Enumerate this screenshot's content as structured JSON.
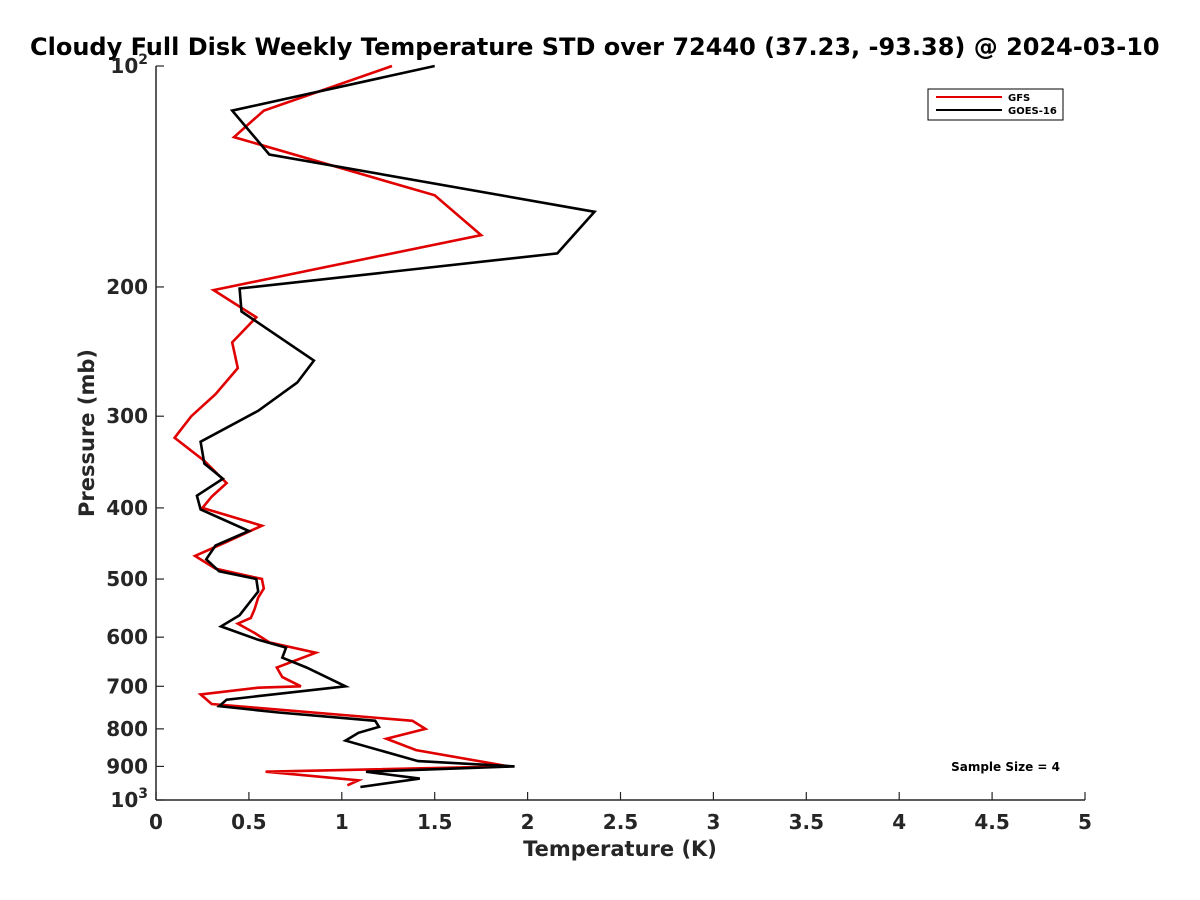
{
  "chart_data": {
    "type": "line",
    "title": "Cloudy Full Disk Weekly Temperature STD over 72440 (37.23, -93.38) @ 2024-03-10",
    "xlabel": "Temperature (K)",
    "ylabel": "Pressure (mb)",
    "xlim": [
      0,
      5
    ],
    "ylim": [
      100,
      1000
    ],
    "y_scale": "log",
    "y_reversed": true,
    "x_ticks": [
      0,
      0.5,
      1,
      1.5,
      2,
      2.5,
      3,
      3.5,
      4,
      4.5,
      5
    ],
    "x_tick_labels": [
      "0",
      "0.5",
      "1",
      "1.5",
      "2",
      "2.5",
      "3",
      "3.5",
      "4",
      "4.5",
      "5"
    ],
    "y_ticks": [
      100,
      200,
      300,
      400,
      500,
      600,
      700,
      800,
      900,
      1000
    ],
    "y_tick_labels": [
      {
        "base": "10",
        "exp": "2"
      },
      {
        "base": "200",
        "exp": ""
      },
      {
        "base": "300",
        "exp": ""
      },
      {
        "base": "400",
        "exp": ""
      },
      {
        "base": "500",
        "exp": ""
      },
      {
        "base": "600",
        "exp": ""
      },
      {
        "base": "700",
        "exp": ""
      },
      {
        "base": "800",
        "exp": ""
      },
      {
        "base": "900",
        "exp": ""
      },
      {
        "base": "10",
        "exp": "3"
      }
    ],
    "grid": false,
    "legend_position": "top-right",
    "annotation": "Sample Size = 4",
    "series": [
      {
        "name": "GFS",
        "color": "#e00000",
        "points": [
          [
            1.27,
            100
          ],
          [
            0.58,
            115
          ],
          [
            0.42,
            125
          ],
          [
            1.5,
            150
          ],
          [
            1.75,
            170
          ],
          [
            0.31,
            202
          ],
          [
            0.54,
            220
          ],
          [
            0.41,
            238
          ],
          [
            0.44,
            258
          ],
          [
            0.32,
            280
          ],
          [
            0.19,
            300
          ],
          [
            0.1,
            321
          ],
          [
            0.26,
            345
          ],
          [
            0.38,
            370
          ],
          [
            0.3,
            386
          ],
          [
            0.25,
            400
          ],
          [
            0.57,
            423
          ],
          [
            0.38,
            445
          ],
          [
            0.21,
            465
          ],
          [
            0.32,
            484
          ],
          [
            0.57,
            500
          ],
          [
            0.58,
            515
          ],
          [
            0.55,
            530
          ],
          [
            0.53,
            550
          ],
          [
            0.51,
            565
          ],
          [
            0.44,
            575
          ],
          [
            0.53,
            592
          ],
          [
            0.61,
            610
          ],
          [
            0.86,
            630
          ],
          [
            0.65,
            660
          ],
          [
            0.68,
            680
          ],
          [
            0.78,
            700
          ],
          [
            0.55,
            703
          ],
          [
            0.24,
            718
          ],
          [
            0.3,
            740
          ],
          [
            1.38,
            780
          ],
          [
            1.45,
            800
          ],
          [
            1.24,
            825
          ],
          [
            1.4,
            855
          ],
          [
            1.9,
            900
          ],
          [
            0.59,
            915
          ],
          [
            1.09,
            940
          ],
          [
            1.03,
            955
          ]
        ]
      },
      {
        "name": "GOES-16",
        "color": "#000000",
        "points": [
          [
            1.5,
            100
          ],
          [
            0.41,
            115
          ],
          [
            0.61,
            132
          ],
          [
            2.36,
            158
          ],
          [
            2.16,
            180
          ],
          [
            0.45,
            201
          ],
          [
            0.46,
            216
          ],
          [
            0.85,
            252
          ],
          [
            0.76,
            270
          ],
          [
            0.55,
            295
          ],
          [
            0.24,
            325
          ],
          [
            0.26,
            348
          ],
          [
            0.36,
            365
          ],
          [
            0.22,
            385
          ],
          [
            0.24,
            402
          ],
          [
            0.5,
            430
          ],
          [
            0.32,
            450
          ],
          [
            0.27,
            470
          ],
          [
            0.34,
            488
          ],
          [
            0.54,
            500
          ],
          [
            0.55,
            520
          ],
          [
            0.45,
            560
          ],
          [
            0.35,
            580
          ],
          [
            0.55,
            605
          ],
          [
            0.7,
            620
          ],
          [
            0.68,
            640
          ],
          [
            0.81,
            660
          ],
          [
            1.02,
            700
          ],
          [
            0.38,
            730
          ],
          [
            0.34,
            745
          ],
          [
            0.66,
            760
          ],
          [
            1.18,
            780
          ],
          [
            1.2,
            795
          ],
          [
            1.09,
            810
          ],
          [
            1.02,
            830
          ],
          [
            1.41,
            885
          ],
          [
            1.93,
            900
          ],
          [
            1.13,
            915
          ],
          [
            1.42,
            935
          ],
          [
            1.1,
            960
          ]
        ]
      }
    ]
  }
}
